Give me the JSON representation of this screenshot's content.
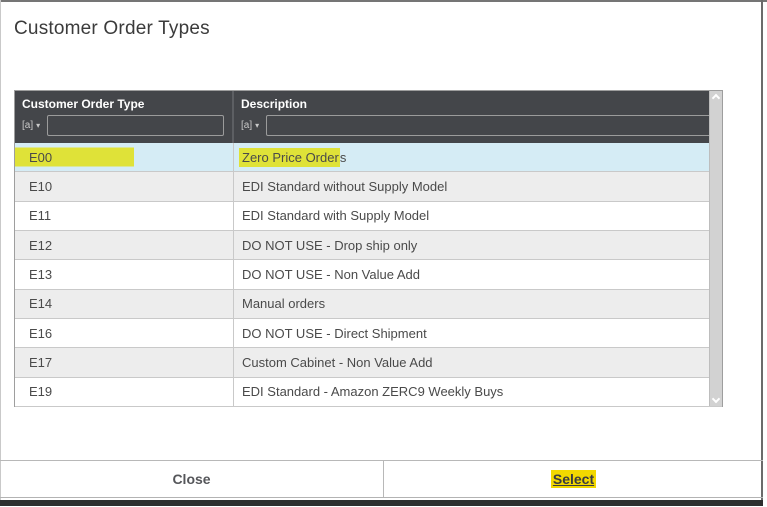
{
  "dialog": {
    "title": "Customer Order Types"
  },
  "table": {
    "columns": [
      {
        "label": "Customer Order Type",
        "filter_value": "",
        "filter_placeholder": ""
      },
      {
        "label": "Description",
        "filter_value": "",
        "filter_placeholder": ""
      }
    ],
    "rows": [
      {
        "code": "E00",
        "description": "Zero Price Orders",
        "selected": true,
        "code_highlight": true,
        "desc_highlight": "Zero Price Order",
        "desc_tail": "s"
      },
      {
        "code": "E10",
        "description": "EDI Standard without Supply Model"
      },
      {
        "code": "E11",
        "description": "EDI Standard with Supply Model"
      },
      {
        "code": "E12",
        "description": "DO NOT USE - Drop ship only"
      },
      {
        "code": "E13",
        "description": "DO NOT USE - Non Value Add"
      },
      {
        "code": "E14",
        "description": "Manual orders"
      },
      {
        "code": "E16",
        "description": "DO NOT USE - Direct Shipment"
      },
      {
        "code": "E17",
        "description": "Custom Cabinet - Non Value Add"
      },
      {
        "code": "E19",
        "description": "EDI Standard - Amazon ZERC9 Weekly Buys"
      }
    ]
  },
  "icons": {
    "filter_type": "[a]",
    "filter_caret": "▾"
  },
  "footer": {
    "close_label": "Close",
    "select_label": "Select"
  },
  "colors": {
    "header_bg": "#44464a",
    "selected_row": "#d5ecf5",
    "alt_row": "#ededed",
    "annotation_highlight": "#dfe238",
    "select_button_highlight": "#f2d800",
    "cell_text": "#4a4a4a"
  }
}
